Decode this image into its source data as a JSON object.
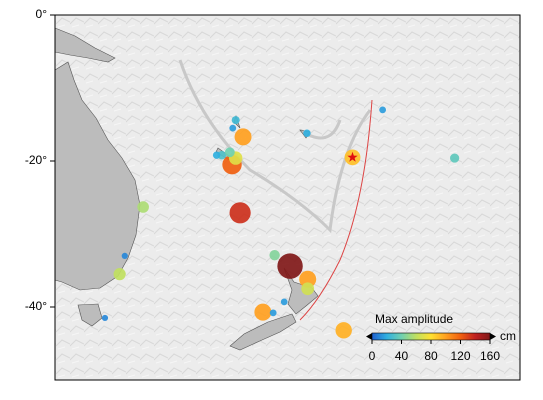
{
  "chart_data": {
    "type": "scatter",
    "x": [
      165.6,
      164.1,
      164.6,
      162.7,
      163.8,
      162.0,
      165.2,
      172.0,
      169.9,
      174.4,
      174.4,
      168.3,
      179.3,
      180.5,
      194.4,
      152.0,
      148.8,
      164.6,
      174.3,
      184.6,
      149.5,
      146.8,
      171.2,
      169.7,
      164.2
    ],
    "y": [
      -16.7,
      -20.5,
      -19.6,
      -19.2,
      -18.8,
      -19.2,
      -27.1,
      -34.4,
      -32.9,
      -36.2,
      -37.5,
      -40.7,
      -43.2,
      -19.5,
      -19.6,
      -26.3,
      -35.5,
      -14.4,
      -16.2,
      -13.0,
      -33.0,
      -41.5,
      -39.3,
      -40.8,
      -15.5
    ],
    "values": [
      100,
      120,
      70,
      30,
      40,
      20,
      135,
      170,
      45,
      100,
      65,
      100,
      95,
      90,
      35,
      55,
      60,
      25,
      20,
      15,
      10,
      10,
      15,
      15,
      15
    ],
    "epicenter": {
      "x": 180.5,
      "y": -19.5
    },
    "xlim": [
      140,
      203.3
    ],
    "ylim": [
      0,
      -50
    ],
    "yticks": [
      {
        "value": 0,
        "label": "0°"
      },
      {
        "value": -20,
        "label": "-20°"
      },
      {
        "value": -40,
        "label": "-40°"
      }
    ],
    "legend": {
      "title": "Max amplitude",
      "unit": "cm",
      "clim": [
        0,
        160
      ],
      "ticks": [
        0,
        40,
        80,
        120,
        160
      ],
      "colors": [
        "#2060d0",
        "#30b0e0",
        "#70d0b0",
        "#c0e060",
        "#ffe030",
        "#ffa020",
        "#f06010",
        "#c02020",
        "#801818"
      ]
    }
  }
}
